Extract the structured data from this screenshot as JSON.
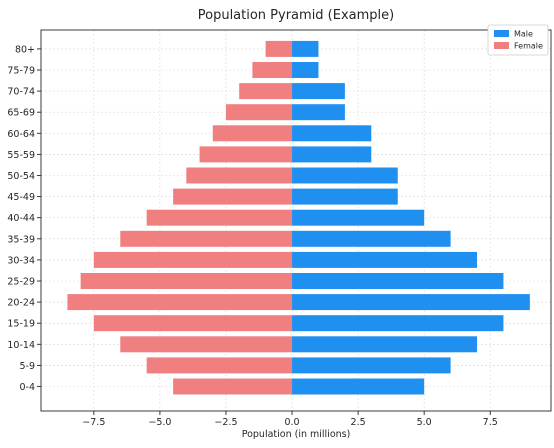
{
  "chart_data": {
    "type": "bar",
    "orientation": "horizontal",
    "title": "Population Pyramid (Example)",
    "xlabel": "Population (in millions)",
    "ylabel": "",
    "categories": [
      "0-4",
      "5-9",
      "10-14",
      "15-19",
      "20-24",
      "25-29",
      "30-34",
      "35-39",
      "40-44",
      "45-49",
      "50-54",
      "55-59",
      "60-64",
      "65-69",
      "70-74",
      "75-79",
      "80+"
    ],
    "series": [
      {
        "name": "Male",
        "color": "#1f8ff0",
        "values": [
          5,
          6,
          7,
          8,
          9,
          8,
          7,
          6,
          5,
          4,
          4,
          3,
          3,
          2,
          2,
          1,
          1
        ]
      },
      {
        "name": "Female",
        "color": "#f08080",
        "values": [
          -4.5,
          -5.5,
          -6.5,
          -7.5,
          -8.5,
          -8,
          -7.5,
          -6.5,
          -5.5,
          -4.5,
          -4,
          -3.5,
          -3,
          -2.5,
          -2,
          -1.5,
          -1
        ]
      }
    ],
    "xlim": [
      -9.5,
      9.8
    ],
    "xticks": [
      -7.5,
      -5,
      -2.5,
      0,
      2.5,
      5,
      7.5
    ],
    "xtick_labels": [
      "−7.5",
      "−5.0",
      "−2.5",
      "0.0",
      "2.5",
      "5.0",
      "7.5"
    ],
    "grid": true,
    "legend": "top-right"
  }
}
